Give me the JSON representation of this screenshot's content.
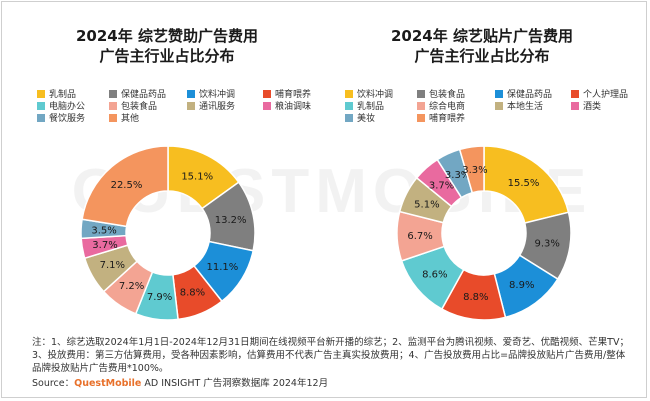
{
  "watermark": "QUESTMOBILE",
  "chart_data": [
    {
      "type": "pie",
      "style": "donut",
      "title": [
        "2024年 综艺赞助广告费用",
        "广告主行业占比分布"
      ],
      "legend_position": "top",
      "categories": [
        "乳制品",
        "保健品药品",
        "饮料冲调",
        "哺育喂养",
        "电脑办公",
        "包装食品",
        "通讯服务",
        "粮油调味",
        "餐饮服务",
        "其他"
      ],
      "colors": [
        "#f7be20",
        "#7f7f7f",
        "#1c8fd8",
        "#e84b2a",
        "#5fcad0",
        "#f3a493",
        "#c2b180",
        "#e96a9f",
        "#72a7c3",
        "#f4955e"
      ],
      "values": [
        15.1,
        13.2,
        11.1,
        8.8,
        7.9,
        7.2,
        7.1,
        3.7,
        3.5,
        22.5
      ],
      "labels": [
        "15.1%",
        "13.2%",
        "11.1%",
        "8.8%",
        "7.9%",
        "7.2%",
        "7.1%",
        "3.7%",
        "3.5%",
        "22.5%"
      ]
    },
    {
      "type": "pie",
      "style": "donut",
      "title": [
        "2024年 综艺贴片广告费用",
        "广告主行业占比分布"
      ],
      "legend_position": "top",
      "categories": [
        "饮料冲调",
        "包装食品",
        "保健品药品",
        "个人护理品",
        "乳制品",
        "综合电商",
        "本地生活",
        "酒类",
        "美妆",
        "哺育喂养"
      ],
      "colors": [
        "#f7be20",
        "#7f7f7f",
        "#1c8fd8",
        "#e84b2a",
        "#5fcad0",
        "#f3a493",
        "#c2b180",
        "#e96a9f",
        "#72a7c3",
        "#f4955e"
      ],
      "values": [
        15.5,
        9.3,
        8.9,
        8.8,
        8.6,
        6.7,
        5.1,
        3.7,
        3.3,
        3.3
      ],
      "labels": [
        "15.5%",
        "9.3%",
        "8.9%",
        "8.8%",
        "8.6%",
        "6.7%",
        "5.1%",
        "3.7%",
        "3.3%",
        "3.3%"
      ]
    }
  ],
  "note": "注：1、综艺选取2024年1月1日-2024年12月31日期间在线视频平台新开播的综艺；2、监测平台为腾讯视频、爱奇艺、优酷视频、芒果TV；3、投放费用：第三方估算费用，受各种因素影响，估算费用不代表广告主真实投放费用；4、广告投放费用占比=品牌投放贴片广告费用/整体品牌投放贴片广告费用*100%。",
  "source": {
    "prefix": "Source：",
    "brand": "QuestMobile",
    "suffix": " AD INSIGHT 广告洞察数据库 2024年12月"
  }
}
